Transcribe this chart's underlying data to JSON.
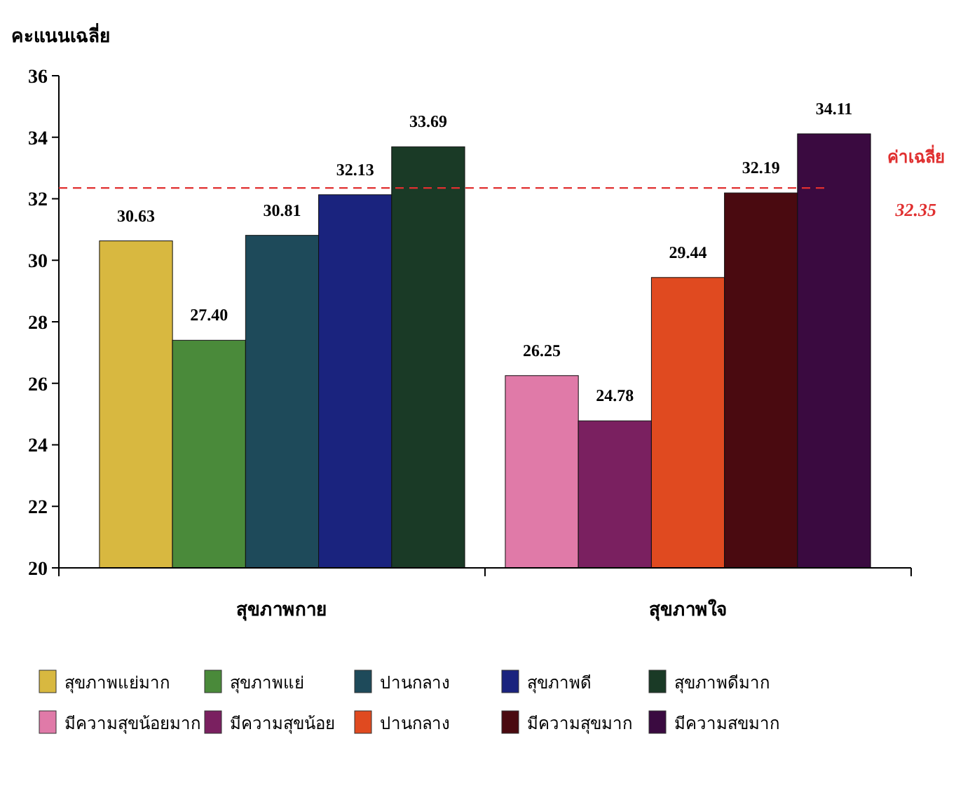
{
  "chart_data": {
    "type": "bar",
    "ylabel": "คะแนนเฉลี่ย",
    "categories": [
      "สุขภาพกาย",
      "สุขภาพใจ"
    ],
    "ylim": [
      20,
      36
    ],
    "yticks": [
      20,
      22,
      24,
      26,
      28,
      30,
      32,
      34,
      36
    ],
    "grid": false,
    "legend": "bottom",
    "series": [
      {
        "name": "สุขภาพแย่มาก",
        "color": "#d8b840",
        "values": [
          30.63,
          null
        ],
        "value_labels": [
          "30.63",
          null
        ]
      },
      {
        "name": "สุขภาพแย่",
        "color": "#4a8a3a",
        "values": [
          27.4,
          null
        ],
        "value_labels": [
          "27.40",
          null
        ]
      },
      {
        "name": "ปานกลาง",
        "color": "#1e4a5a",
        "values": [
          30.81,
          null
        ],
        "value_labels": [
          "30.81",
          null
        ]
      },
      {
        "name": "สุขภาพดี",
        "color": "#1a237e",
        "values": [
          32.13,
          null
        ],
        "value_labels": [
          "32.13",
          null
        ]
      },
      {
        "name": "สุขภาพดีมาก",
        "color": "#1a3a26",
        "values": [
          33.69,
          null
        ],
        "value_labels": [
          "33.69",
          null
        ]
      },
      {
        "name": "มีความสุขน้อยมาก",
        "color": "#e07aa8",
        "values": [
          null,
          26.25
        ],
        "value_labels": [
          null,
          "26.25"
        ]
      },
      {
        "name": "มีความสุขน้อย",
        "color": "#7a2060",
        "values": [
          null,
          24.78
        ],
        "value_labels": [
          null,
          "24.78"
        ]
      },
      {
        "name": "ปานกลาง",
        "color": "#e04a20",
        "values": [
          null,
          29.44
        ],
        "value_labels": [
          null,
          "29.44"
        ]
      },
      {
        "name": "มีความสุขมาก",
        "color": "#4a0a10",
        "values": [
          null,
          32.19
        ],
        "value_labels": [
          null,
          "32.19"
        ]
      },
      {
        "name": "มีความสขมาก",
        "color": "#3a0a40",
        "values": [
          null,
          34.11
        ],
        "value_labels": [
          null,
          "34.11"
        ]
      }
    ],
    "ref_lines": [
      {
        "axis": "y",
        "value": 32.35,
        "label": "ค่าเฉลี่ย",
        "color": "#e03030",
        "line_style": "dashed"
      }
    ],
    "annotations": [
      "32.35"
    ]
  }
}
